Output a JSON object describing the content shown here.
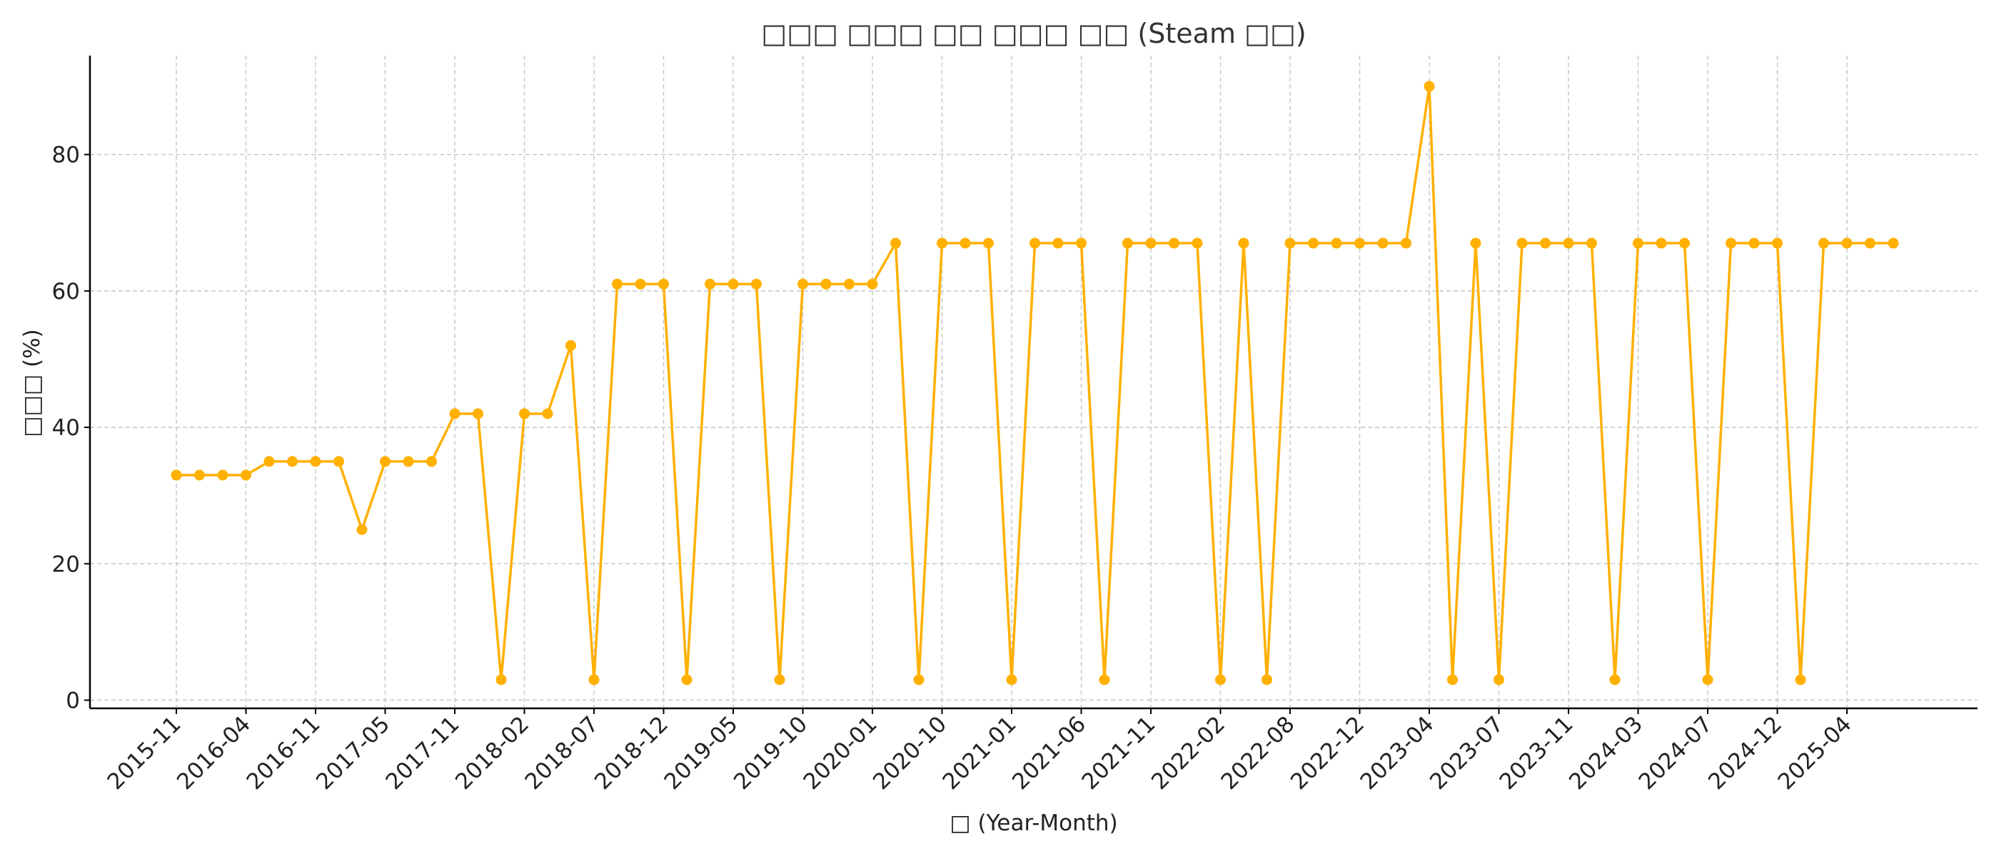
{
  "chart_data": {
    "type": "line",
    "title": "□□□ □□□ □□ □□□ □□ (Steam □□)",
    "xlabel": "□ (Year-Month)",
    "ylabel": "□□□ (%)",
    "ylim": [
      -1.2,
      94.5
    ],
    "yticks": [
      0,
      20,
      40,
      60,
      80
    ],
    "grid": true,
    "color": "#FFB000",
    "x_tick_labels": [
      "2015-11",
      "2016-04",
      "2016-11",
      "2017-05",
      "2017-11",
      "2018-02",
      "2018-07",
      "2018-12",
      "2019-05",
      "2019-10",
      "2020-01",
      "2020-10",
      "2021-01",
      "2021-06",
      "2021-11",
      "2022-02",
      "2022-08",
      "2022-12",
      "2023-04",
      "2023-07",
      "2023-11",
      "2024-03",
      "2024-07",
      "2024-12",
      "2025-04"
    ],
    "x_tick_every": 3,
    "values": [
      33,
      33,
      33,
      33,
      35,
      35,
      35,
      35,
      25,
      35,
      35,
      35,
      42,
      42,
      3,
      42,
      42,
      52,
      3,
      61,
      61,
      61,
      3,
      61,
      61,
      61,
      3,
      61,
      61,
      61,
      61,
      67,
      3,
      67,
      67,
      67,
      3,
      67,
      67,
      67,
      3,
      67,
      67,
      67,
      67,
      3,
      67,
      3,
      67,
      67,
      67,
      67,
      67,
      67,
      90,
      3,
      67,
      3,
      67,
      67,
      67,
      67,
      3,
      67,
      67,
      67,
      3,
      67,
      67,
      67,
      3,
      67,
      67,
      67,
      67
    ]
  }
}
